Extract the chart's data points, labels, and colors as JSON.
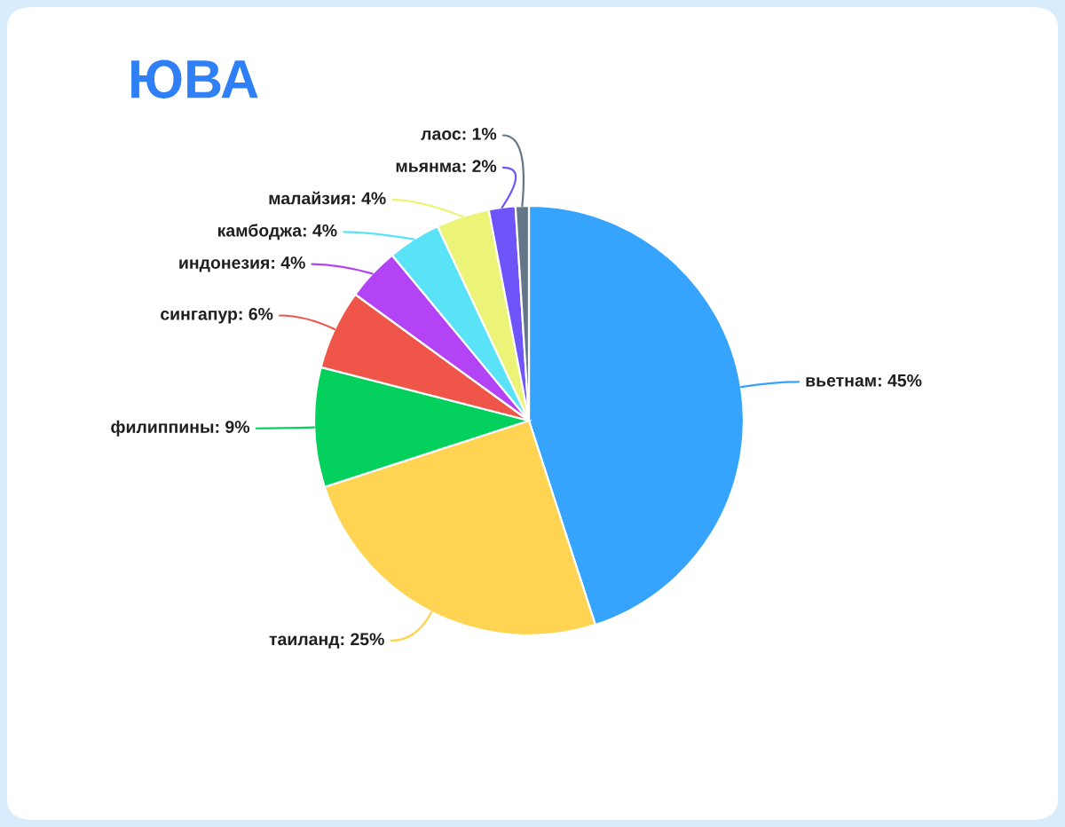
{
  "chart_data": {
    "type": "pie",
    "title": "ЮВА",
    "categories": [
      "вьетнам",
      "таиланд",
      "филиппины",
      "сингапур",
      "индонезия",
      "камбоджа",
      "малайзия",
      "мьянма",
      "лаос"
    ],
    "values": [
      45,
      25,
      9,
      6,
      4,
      4,
      4,
      2,
      1
    ],
    "colors": [
      "#36a3fc",
      "#fed452",
      "#04d15d",
      "#f0554a",
      "#b244f5",
      "#5ae3f7",
      "#ecf477",
      "#6f55f9",
      "#647789"
    ],
    "value_labels": [
      "45%",
      "25%",
      "9%",
      "6%",
      "4%",
      "4%",
      "4%",
      "2%",
      "1%"
    ]
  }
}
